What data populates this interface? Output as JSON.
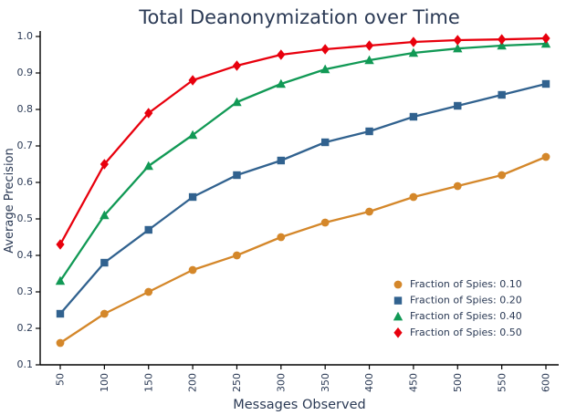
{
  "page": {
    "background": "#ffffff"
  },
  "chart_data": {
    "type": "line",
    "title": "Total Deanonymization over Time",
    "xlabel": "Messages Observed",
    "ylabel": "Average Precision",
    "x_ticks": [
      50,
      100,
      150,
      200,
      250,
      300,
      350,
      400,
      450,
      500,
      550,
      600
    ],
    "y_ticks": [
      0.1,
      0.2,
      0.3,
      0.4,
      0.5,
      0.6,
      0.7,
      0.8,
      0.9,
      1.0
    ],
    "ylim": [
      0.1,
      1.0
    ],
    "grid": false,
    "legend_position": "lower-right",
    "text_color": "#2b3a55",
    "axis_color": "#000000",
    "series": [
      {
        "name": "Fraction of Spies: 0.10",
        "marker": "circle",
        "color": "#d4872a",
        "values": [
          0.16,
          0.24,
          0.3,
          0.36,
          0.4,
          0.45,
          0.49,
          0.52,
          0.56,
          0.59,
          0.62,
          0.67
        ]
      },
      {
        "name": "Fraction of Spies: 0.20",
        "marker": "square",
        "color": "#31628f",
        "values": [
          0.24,
          0.38,
          0.47,
          0.56,
          0.62,
          0.66,
          0.71,
          0.74,
          0.78,
          0.81,
          0.84,
          0.87
        ]
      },
      {
        "name": "Fraction of Spies: 0.40",
        "marker": "triangle",
        "color": "#119955",
        "values": [
          0.33,
          0.51,
          0.645,
          0.73,
          0.82,
          0.87,
          0.91,
          0.935,
          0.955,
          0.967,
          0.975,
          0.98
        ]
      },
      {
        "name": "Fraction of Spies: 0.50",
        "marker": "diamond",
        "color": "#e8000d",
        "values": [
          0.43,
          0.65,
          0.79,
          0.88,
          0.92,
          0.95,
          0.965,
          0.975,
          0.985,
          0.99,
          0.992,
          0.995
        ]
      }
    ]
  }
}
